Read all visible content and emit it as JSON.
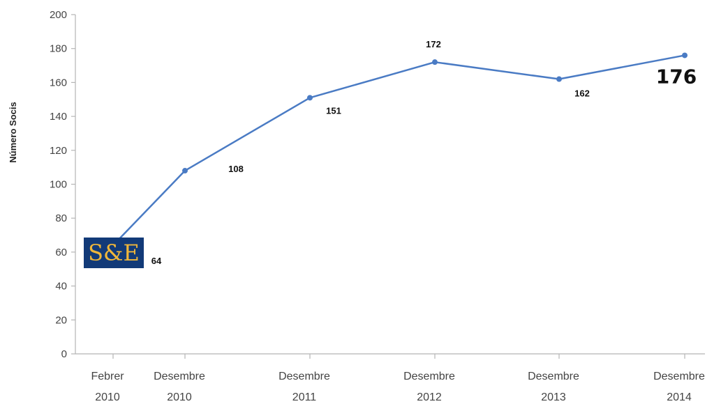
{
  "chart_data": {
    "type": "line",
    "ylabel": "Número Socis",
    "ylim": [
      0,
      200
    ],
    "ytick_step": 20,
    "grid": false,
    "categories": [
      [
        "Febrer",
        "2010"
      ],
      [
        "Desembre",
        "2010"
      ],
      [
        "Desembre",
        "2011"
      ],
      [
        "Desembre",
        "2012"
      ],
      [
        "Desembre",
        "2013"
      ],
      [
        "Desembre",
        "2014"
      ]
    ],
    "values": [
      64,
      108,
      151,
      172,
      162,
      176
    ],
    "data_labels": [
      "64",
      "108",
      "151",
      "172",
      "162",
      "176"
    ],
    "line_color": "#4a7bc4",
    "emphasized_label_index": 5
  },
  "logo": {
    "text": "S&E",
    "background": "#123a78",
    "text_color": "#f0b73a"
  }
}
